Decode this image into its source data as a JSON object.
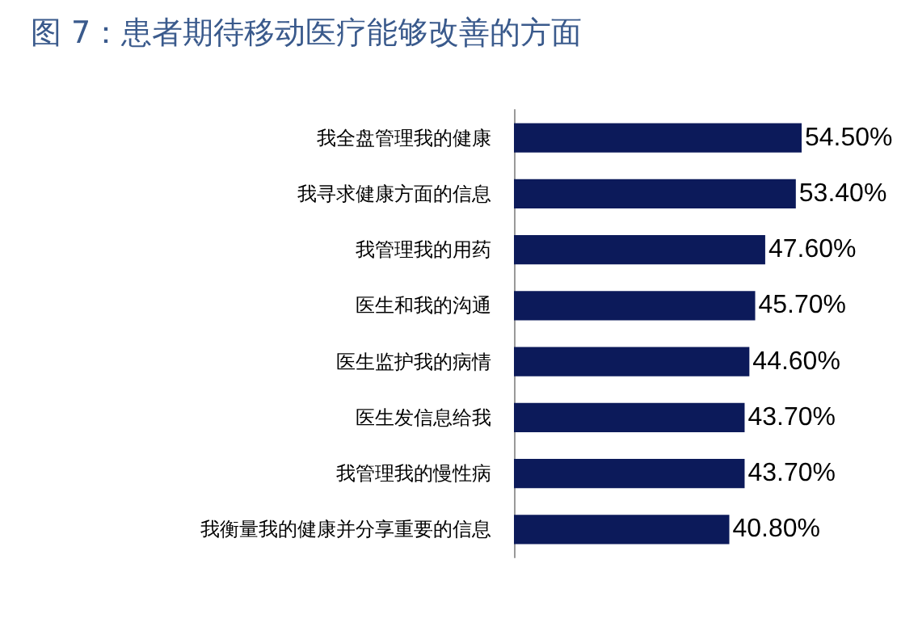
{
  "chart_data": {
    "type": "bar",
    "orientation": "horizontal",
    "title": "图 7：患者期待移动医疗能够改善的方面",
    "categories": [
      "我全盘管理我的健康",
      "我寻求健康方面的信息",
      "我管理我的用药",
      "医生和我的沟通",
      "医生监护我的病情",
      "医生发信息给我",
      "我管理我的慢性病",
      "我衡量我的健康并分享重要的信息"
    ],
    "values": [
      54.5,
      53.4,
      47.6,
      45.7,
      44.6,
      43.7,
      43.7,
      40.8
    ],
    "value_labels": [
      "54.50%",
      "53.40%",
      "47.60%",
      "45.70%",
      "44.60%",
      "43.70%",
      "43.70%",
      "40.80%"
    ],
    "color": "#0c1a5a",
    "tick_labels": "y"
  }
}
